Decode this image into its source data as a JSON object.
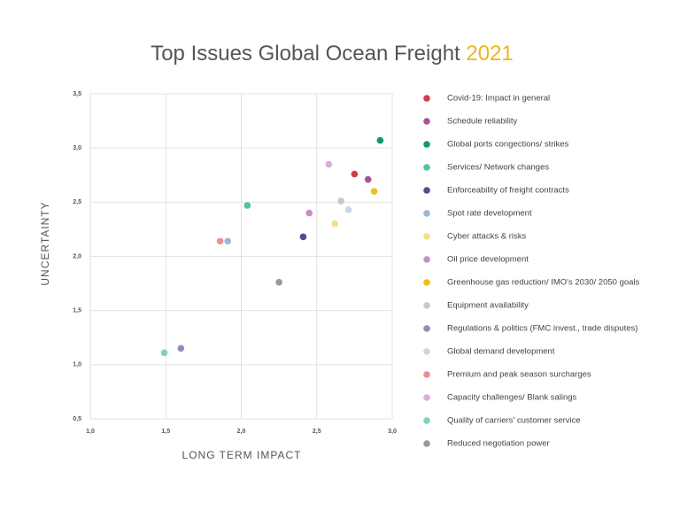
{
  "chart_data": {
    "type": "scatter",
    "title": "Top Issues Global Ocean Freight",
    "title_highlight": "2021",
    "title_highlight_color": "#f0b323",
    "x_label": "LONG TERM IMPACT",
    "y_label": "UNCERTAINTY",
    "xlim": [
      1,
      3
    ],
    "ylim": [
      0.5,
      3.5
    ],
    "xticks": [
      {
        "value": 1,
        "label": "1,0"
      },
      {
        "value": 1.5,
        "label": "1,5"
      },
      {
        "value": 2,
        "label": "2,0"
      },
      {
        "value": 2.5,
        "label": "2,5"
      },
      {
        "value": 3,
        "label": "3,0"
      }
    ],
    "yticks": [
      {
        "value": 0.5,
        "label": "0,5"
      },
      {
        "value": 1,
        "label": "1,0"
      },
      {
        "value": 1.5,
        "label": "1,5"
      },
      {
        "value": 2,
        "label": "2,0"
      },
      {
        "value": 2.5,
        "label": "2,5"
      },
      {
        "value": 3,
        "label": "3,0"
      },
      {
        "value": 3.5,
        "label": "3,5"
      }
    ],
    "grid": true,
    "series": [
      {
        "name": "Covid-19: Impact in general",
        "color": "#d63a4a",
        "x": [
          2.75
        ],
        "values": [
          2.76
        ]
      },
      {
        "name": "Schedule reliability",
        "color": "#a9529e",
        "x": [
          2.84
        ],
        "values": [
          2.71
        ]
      },
      {
        "name": "Global ports congections/ strikes",
        "color": "#119a6a",
        "x": [
          2.92
        ],
        "values": [
          3.07
        ]
      },
      {
        "name": "Services/ Network changes",
        "color": "#4fc4a2",
        "x": [
          2.04
        ],
        "values": [
          2.47
        ]
      },
      {
        "name": "Enforceability of freight contracts",
        "color": "#4c4f94",
        "x": [
          2.41
        ],
        "values": [
          2.18
        ]
      },
      {
        "name": "Spot rate development",
        "color": "#9cb6d8",
        "x": [
          1.91
        ],
        "values": [
          2.14
        ]
      },
      {
        "name": "Cyber attacks & risks",
        "color": "#f7dc8f",
        "x": [
          2.62
        ],
        "values": [
          2.3
        ]
      },
      {
        "name": "Oil price development",
        "color": "#c98dc6",
        "x": [
          2.45
        ],
        "values": [
          2.4
        ]
      },
      {
        "name": "Greenhouse gas reduction/ IMO's 2030/ 2050 goals",
        "color": "#f3bd1c",
        "x": [
          2.88
        ],
        "values": [
          2.6
        ]
      },
      {
        "name": "Equipment availability",
        "color": "#c8c8c8",
        "x": [
          2.66
        ],
        "values": [
          2.51
        ]
      },
      {
        "name": "Regulations & politics (FMC invest., trade disputes)",
        "color": "#8c8cbd",
        "x": [
          1.6
        ],
        "values": [
          1.15
        ]
      },
      {
        "name": "Global demand development",
        "color": "#c7d6e8",
        "x": [
          2.71
        ],
        "values": [
          2.43
        ]
      },
      {
        "name": "Premium and peak season surcharges",
        "color": "#ee8e99",
        "x": [
          1.86
        ],
        "values": [
          2.14
        ]
      },
      {
        "name": "Capacity challenges/ Blank salings",
        "color": "#dbaed6",
        "x": [
          2.58
        ],
        "values": [
          2.85
        ]
      },
      {
        "name": "Quality of carriers' customer service",
        "color": "#86d1b7",
        "x": [
          1.49
        ],
        "values": [
          1.11
        ]
      },
      {
        "name": "Reduced negotiation power",
        "color": "#999999",
        "x": [
          2.25
        ],
        "values": [
          1.76
        ]
      }
    ]
  }
}
